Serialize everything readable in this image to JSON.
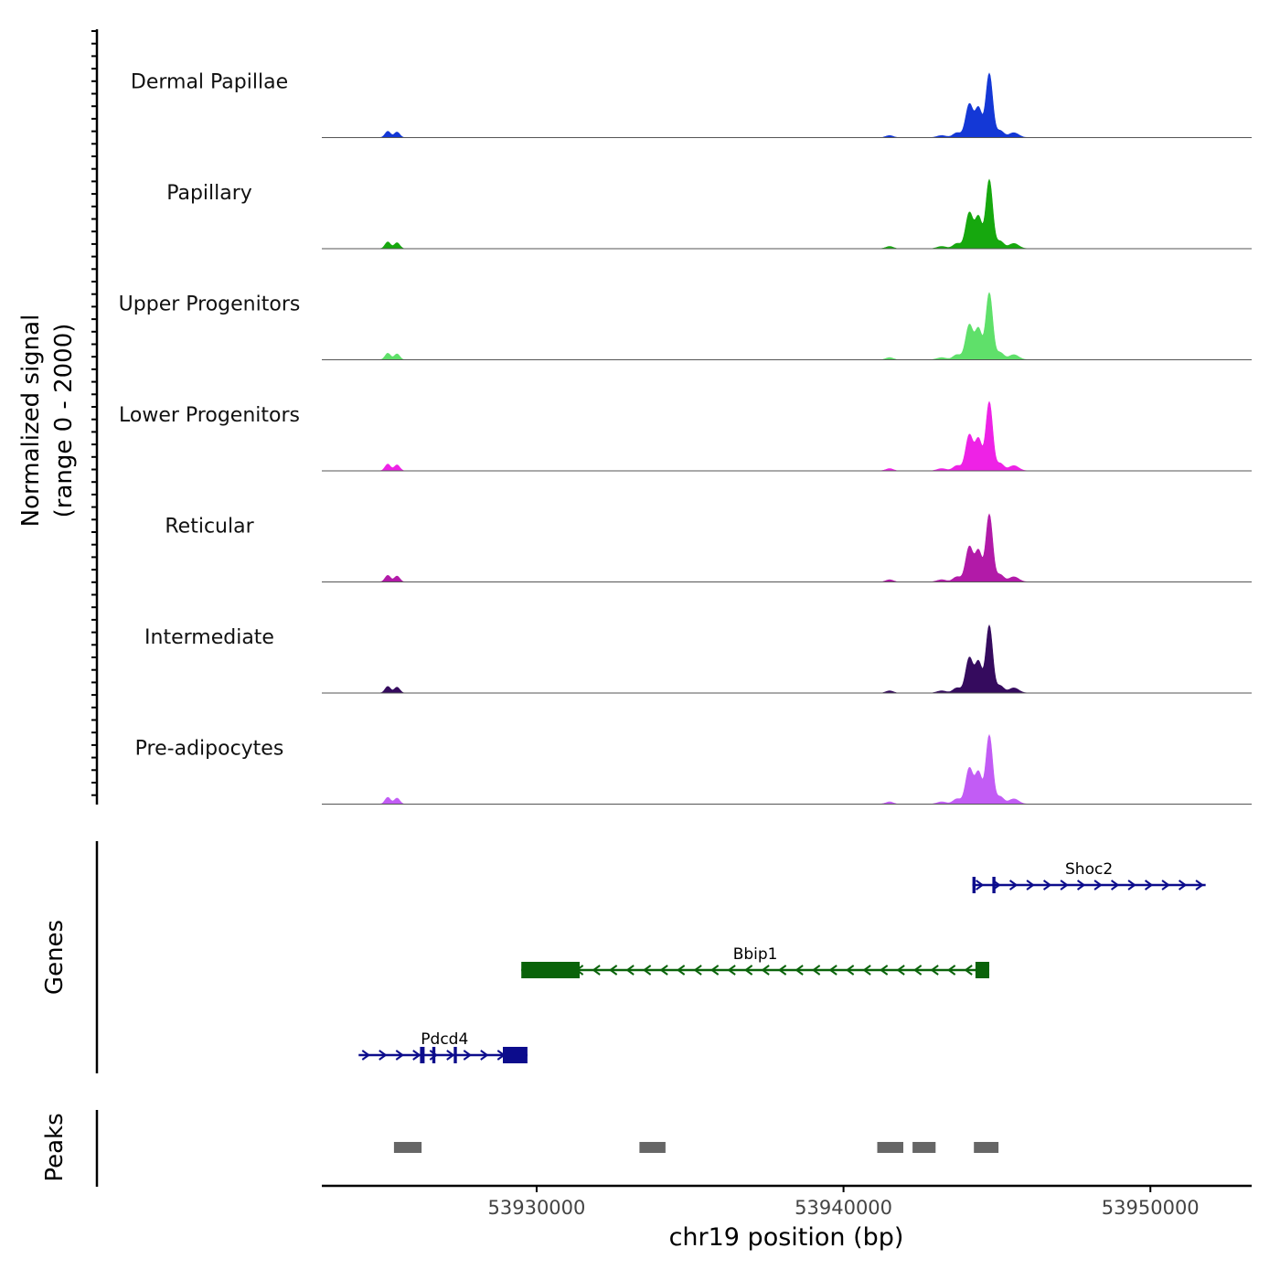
{
  "chart_data": {
    "type": "area",
    "title": "",
    "ylabel_line1": "Normalized signal",
    "ylabel_line2": "(range 0 - 2000)",
    "y_range": [
      0,
      2000
    ],
    "xlabel": "chr19 position (bp)",
    "x_range": [
      53923000,
      53953300
    ],
    "x_ticks": [
      53930000,
      53940000,
      53950000
    ],
    "x_tick_labels": [
      "53930000",
      "53940000",
      "53950000"
    ],
    "tracks": [
      {
        "name": "Dermal Papillae",
        "color": "#1438d6",
        "scale": 0.93
      },
      {
        "name": "Papillary",
        "color": "#16a80e",
        "scale": 1.0
      },
      {
        "name": "Upper Progenitors",
        "color": "#5fe06a",
        "scale": 0.97
      },
      {
        "name": "Lower Progenitors",
        "color": "#ee22e6",
        "scale": 1.0
      },
      {
        "name": "Reticular",
        "color": "#b21aa8",
        "scale": 0.98
      },
      {
        "name": "Intermediate",
        "color": "#350b5e",
        "scale": 0.98
      },
      {
        "name": "Pre-adipocytes",
        "color": "#c25cf5",
        "scale": 1.0
      }
    ],
    "peaks_shape": [
      {
        "pos": 53925150,
        "h": 0.09,
        "w": 90
      },
      {
        "pos": 53925450,
        "h": 0.08,
        "w": 90
      },
      {
        "pos": 53941500,
        "h": 0.03,
        "w": 120
      },
      {
        "pos": 53943200,
        "h": 0.03,
        "w": 150
      },
      {
        "pos": 53943700,
        "h": 0.07,
        "w": 130
      },
      {
        "pos": 53944100,
        "h": 0.48,
        "w": 120
      },
      {
        "pos": 53944400,
        "h": 0.42,
        "w": 110
      },
      {
        "pos": 53944750,
        "h": 0.92,
        "w": 110
      },
      {
        "pos": 53945100,
        "h": 0.1,
        "w": 120
      },
      {
        "pos": 53945550,
        "h": 0.07,
        "w": 160
      }
    ],
    "genes_label": "Genes",
    "genes": [
      {
        "name": "Shoc2",
        "strand": "+",
        "start": 53944200,
        "end": 53951800,
        "color": "#0c0c8c",
        "row": 0,
        "exons": [
          [
            53944200,
            53944300
          ],
          [
            53944850,
            53944950
          ]
        ]
      },
      {
        "name": "Bbip1",
        "strand": "-",
        "start": 53929500,
        "end": 53944750,
        "color": "#0a630a",
        "row": 1,
        "exons": [
          [
            53929500,
            53931400
          ],
          [
            53944300,
            53944750
          ]
        ]
      },
      {
        "name": "Pdcd4",
        "strand": "+",
        "start": 53924200,
        "end": 53929700,
        "color": "#0c0c8c",
        "row": 2,
        "exons": [
          [
            53926200,
            53926350
          ],
          [
            53926600,
            53926700
          ],
          [
            53927300,
            53927400
          ],
          [
            53928900,
            53929700
          ]
        ]
      }
    ],
    "peaks_label": "Peaks",
    "peaks": [
      [
        53925350,
        53926250
      ],
      [
        53933350,
        53934200
      ],
      [
        53941100,
        53941950
      ],
      [
        53942250,
        53943000
      ],
      [
        53944250,
        53945050
      ]
    ]
  }
}
